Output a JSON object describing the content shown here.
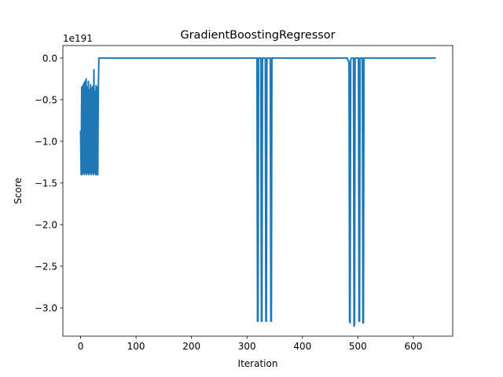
{
  "chart_data": {
    "type": "line",
    "title": "GradientBoostingRegressor",
    "xlabel": "Iteration",
    "ylabel": "Score",
    "y_offset_label": "1e191",
    "y_unit_exponent": 191,
    "xlim": [
      -31.95,
      670.95
    ],
    "ylim": [
      -3.34,
      0.15
    ],
    "x_ticks": [
      0,
      100,
      200,
      300,
      400,
      500,
      600
    ],
    "x_tick_labels": [
      "0",
      "100",
      "200",
      "300",
      "400",
      "500",
      "600"
    ],
    "y_ticks": [
      0.0,
      -0.5,
      -1.0,
      -1.5,
      -2.0,
      -2.5,
      -3.0
    ],
    "y_tick_labels": [
      "0.0",
      "−0.5",
      "−1.0",
      "−1.5",
      "−2.0",
      "−2.5",
      "−3.0"
    ],
    "grid": false,
    "color": "#1f77b4",
    "series": [
      {
        "name": "",
        "x": [
          0,
          1,
          2,
          3,
          4,
          5,
          6,
          7,
          8,
          9,
          10,
          11,
          12,
          13,
          14,
          15,
          16,
          17,
          18,
          19,
          20,
          21,
          22,
          23,
          24,
          25,
          26,
          27,
          28,
          29,
          30,
          31,
          32,
          33,
          318,
          319,
          320,
          321,
          325,
          326,
          327,
          328,
          333,
          334,
          335,
          336,
          342,
          343,
          344,
          345,
          481,
          482,
          483,
          484,
          485,
          486,
          487,
          488,
          492,
          493,
          494,
          495,
          501,
          502,
          503,
          504,
          508,
          509,
          510,
          511,
          639
        ],
        "y": [
          -0.88,
          -1.4,
          -0.35,
          -1.4,
          -0.33,
          -1.38,
          -0.3,
          -1.4,
          -0.28,
          -1.38,
          -0.25,
          -1.4,
          -0.35,
          -1.38,
          -0.28,
          -1.4,
          -0.38,
          -1.38,
          -0.32,
          -1.4,
          -0.36,
          -1.38,
          -0.34,
          -1.4,
          -0.14,
          -1.38,
          -0.4,
          -1.4,
          -0.33,
          -1.4,
          -0.35,
          -1.4,
          -0.36,
          0.0,
          0.0,
          -3.16,
          -3.16,
          0.0,
          0.0,
          -3.16,
          -3.16,
          0.0,
          0.0,
          -3.16,
          -3.16,
          0.0,
          0.0,
          -3.16,
          -3.16,
          0.0,
          0.0,
          -0.03,
          -0.03,
          -0.05,
          -3.16,
          -3.18,
          -0.03,
          0.0,
          0.0,
          -3.22,
          -3.2,
          0.0,
          0.0,
          -3.16,
          -3.16,
          0.0,
          0.0,
          -3.18,
          -3.18,
          0.0,
          0.0
        ]
      }
    ]
  }
}
